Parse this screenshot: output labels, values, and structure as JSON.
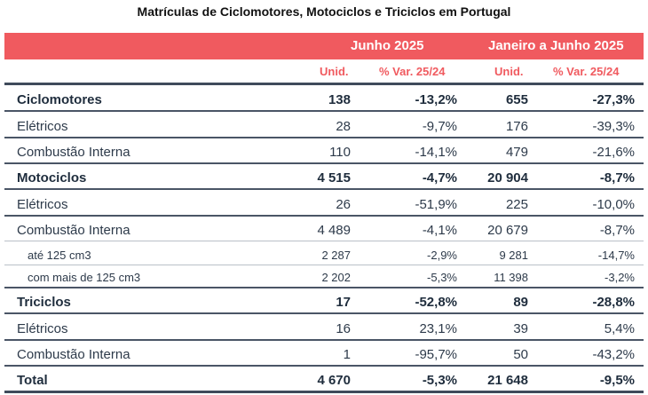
{
  "title": "Matrículas de Ciclomotores, Motociclos e Triciclos em Portugal",
  "header": {
    "group1": "Junho 2025",
    "group2": "Janeiro a Junho 2025",
    "col_unid": "Unid.",
    "col_var": "% Var. 25/24"
  },
  "rows": [
    {
      "label": "Ciclomotores",
      "u1": "138",
      "v1": "-13,2%",
      "u2": "655",
      "v2": "-27,3%"
    },
    {
      "label": "Elétricos",
      "u1": "28",
      "v1": "-9,7%",
      "u2": "176",
      "v2": "-39,3%"
    },
    {
      "label": "Combustão Interna",
      "u1": "110",
      "v1": "-14,1%",
      "u2": "479",
      "v2": "-21,6%"
    },
    {
      "label": "Motociclos",
      "u1": "4 515",
      "v1": "-4,7%",
      "u2": "20 904",
      "v2": "-8,7%"
    },
    {
      "label": "Elétricos",
      "u1": "26",
      "v1": "-51,9%",
      "u2": "225",
      "v2": "-10,0%"
    },
    {
      "label": "Combustão Interna",
      "u1": "4 489",
      "v1": "-4,1%",
      "u2": "20 679",
      "v2": "-8,7%"
    },
    {
      "label": "até 125 cm3",
      "u1": "2 287",
      "v1": "-2,9%",
      "u2": "9 281",
      "v2": "-14,7%"
    },
    {
      "label": "com mais de 125 cm3",
      "u1": "2 202",
      "v1": "-5,3%",
      "u2": "11 398",
      "v2": "-3,2%"
    },
    {
      "label": "Triciclos",
      "u1": "17",
      "v1": "-52,8%",
      "u2": "89",
      "v2": "-28,8%"
    },
    {
      "label": "Elétricos",
      "u1": "16",
      "v1": "23,1%",
      "u2": "39",
      "v2": "5,4%"
    },
    {
      "label": "Combustão Interna",
      "u1": "1",
      "v1": "-95,7%",
      "u2": "50",
      "v2": "-43,2%"
    },
    {
      "label": "Total",
      "u1": "4 670",
      "v1": "-5,3%",
      "u2": "21 648",
      "v2": "-9,5%"
    }
  ]
}
